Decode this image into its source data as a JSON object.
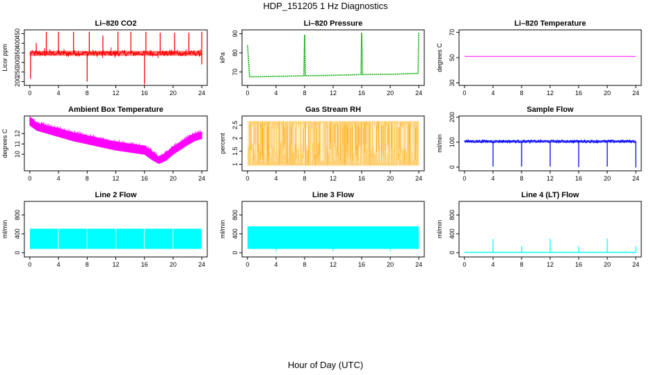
{
  "page": {
    "title": "HDP_151205  1 Hz Diagnostics",
    "xlabel": "Hour of Day (UTC)"
  },
  "chart_data": [
    {
      "type": "line",
      "title": "Li–820 CO2",
      "ylabel": "Licor ppm",
      "xlim": [
        0,
        24
      ],
      "ylim": [
        180,
        470
      ],
      "xticks": [
        0,
        4,
        8,
        12,
        16,
        20,
        24
      ],
      "yticks": [
        200,
        250,
        300,
        350,
        400,
        450
      ],
      "color": "#ff0000",
      "grid": false,
      "base_band": [
        335,
        360
      ],
      "spikes_up": [
        [
          0.9,
          400
        ],
        [
          2.3,
          460
        ],
        [
          4,
          460
        ],
        [
          6.1,
          460
        ],
        [
          8.3,
          460
        ],
        [
          10.2,
          440
        ],
        [
          12.3,
          460
        ],
        [
          14.1,
          460
        ],
        [
          16.2,
          460
        ],
        [
          18.2,
          455
        ],
        [
          20.2,
          455
        ],
        [
          22.2,
          455
        ],
        [
          24,
          460
        ]
      ],
      "spikes_down": [
        [
          0.1,
          215
        ],
        [
          8,
          200
        ],
        [
          16,
          185
        ],
        [
          24,
          290
        ]
      ]
    },
    {
      "type": "line",
      "title": "Li–820 Pressure",
      "ylabel": "kPa",
      "xlim": [
        0,
        24
      ],
      "ylim": [
        63,
        92
      ],
      "xticks": [
        0,
        4,
        8,
        12,
        16,
        20,
        24
      ],
      "yticks": [
        70,
        80,
        90
      ],
      "color": "#00aa00",
      "grid": false,
      "x": [
        0,
        0.3,
        4,
        7.9,
        8,
        8.1,
        12,
        15.9,
        16,
        16.1,
        20,
        23.9,
        24
      ],
      "y": [
        84,
        67.5,
        67.7,
        68,
        89.5,
        68,
        68.3,
        68.7,
        90.5,
        68.7,
        68.8,
        69.3,
        90.5
      ]
    },
    {
      "type": "line",
      "title": "Li–820 Temperature",
      "ylabel": "degrees C",
      "xlim": [
        0,
        24
      ],
      "ylim": [
        28,
        72
      ],
      "xticks": [
        0,
        4,
        8,
        12,
        16,
        20,
        24
      ],
      "yticks": [
        30,
        50,
        70
      ],
      "color": "#ff00ff",
      "grid": false,
      "x": [
        0,
        24
      ],
      "y": [
        51,
        51
      ]
    },
    {
      "type": "area",
      "title": "Ambient Box Temperature",
      "ylabel": "degrees C",
      "xlim": [
        0,
        24
      ],
      "ylim": [
        8.4,
        13.7
      ],
      "xticks": [
        0,
        4,
        8,
        12,
        16,
        20,
        24
      ],
      "yticks": [
        10,
        11,
        12
      ],
      "color": "#ff00ff",
      "grid": false,
      "x": [
        0,
        1,
        2,
        4,
        6,
        8,
        10,
        12,
        14,
        16,
        17,
        18,
        19,
        20,
        22,
        23,
        24
      ],
      "upper": [
        13.5,
        13.0,
        12.8,
        12.5,
        12.1,
        11.8,
        11.5,
        11.2,
        11.0,
        10.8,
        10.3,
        9.7,
        10.1,
        10.7,
        11.6,
        12.0,
        12.1
      ],
      "lower": [
        12.8,
        12.3,
        12.1,
        11.7,
        11.3,
        11.0,
        10.7,
        10.4,
        10.2,
        10.0,
        9.5,
        9.1,
        9.4,
        10.0,
        10.9,
        11.3,
        11.5
      ]
    },
    {
      "type": "area",
      "title": "Gas Stream RH",
      "ylabel": "percent",
      "xlim": [
        0,
        24
      ],
      "ylim": [
        0.75,
        2.85
      ],
      "xticks": [
        0,
        4,
        8,
        12,
        16,
        20,
        24
      ],
      "yticks": [
        1.0,
        1.5,
        2.0,
        2.5
      ],
      "color": "#ffa500",
      "grid": false,
      "band": [
        0.95,
        2.65
      ]
    },
    {
      "type": "line",
      "title": "Sample Flow",
      "ylabel": "ml/min",
      "xlim": [
        0,
        24
      ],
      "ylim": [
        -15,
        205
      ],
      "xticks": [
        0,
        4,
        8,
        12,
        16,
        20,
        24
      ],
      "yticks": [
        0,
        100,
        200
      ],
      "color": "#0000ff",
      "grid": false,
      "base_band": [
        98,
        108
      ],
      "spikes_down": [
        [
          4,
          2
        ],
        [
          8,
          2
        ],
        [
          12,
          2
        ],
        [
          16,
          0
        ],
        [
          20,
          2
        ],
        [
          24,
          -2
        ]
      ]
    },
    {
      "type": "area",
      "title": "Line 2 Flow",
      "ylabel": "ml/min",
      "xlim": [
        0,
        24
      ],
      "ylim": [
        -90,
        1090
      ],
      "xticks": [
        0,
        4,
        8,
        12,
        16,
        20,
        24
      ],
      "yticks": [
        0,
        400,
        800
      ],
      "color": "#00ffff",
      "grid": false,
      "band": [
        80,
        510
      ],
      "gaps": [
        4,
        8,
        12,
        16,
        20,
        24
      ]
    },
    {
      "type": "area",
      "title": "Line 3 Flow",
      "ylabel": "ml/min",
      "xlim": [
        0,
        24
      ],
      "ylim": [
        -90,
        1090
      ],
      "xticks": [
        0,
        4,
        8,
        12,
        16,
        20,
        24
      ],
      "yticks": [
        0,
        400,
        800
      ],
      "color": "#00ffff",
      "grid": false,
      "band": [
        80,
        560
      ],
      "spikes_down": [
        [
          4,
          10
        ],
        [
          12,
          20
        ],
        [
          20,
          20
        ]
      ]
    },
    {
      "type": "line",
      "title": "Line 4 (LT) Flow",
      "ylabel": "ml/min",
      "xlim": [
        0,
        24
      ],
      "ylim": [
        -90,
        1090
      ],
      "xticks": [
        0,
        4,
        8,
        12,
        16,
        20,
        24
      ],
      "yticks": [
        0,
        400,
        800
      ],
      "color": "#00ffff",
      "grid": false,
      "x": [
        0,
        24
      ],
      "y": [
        5,
        5
      ],
      "spikes_up": [
        [
          4,
          290
        ],
        [
          8,
          140
        ],
        [
          12,
          300
        ],
        [
          16,
          140
        ],
        [
          20,
          300
        ],
        [
          24,
          140
        ]
      ]
    }
  ]
}
